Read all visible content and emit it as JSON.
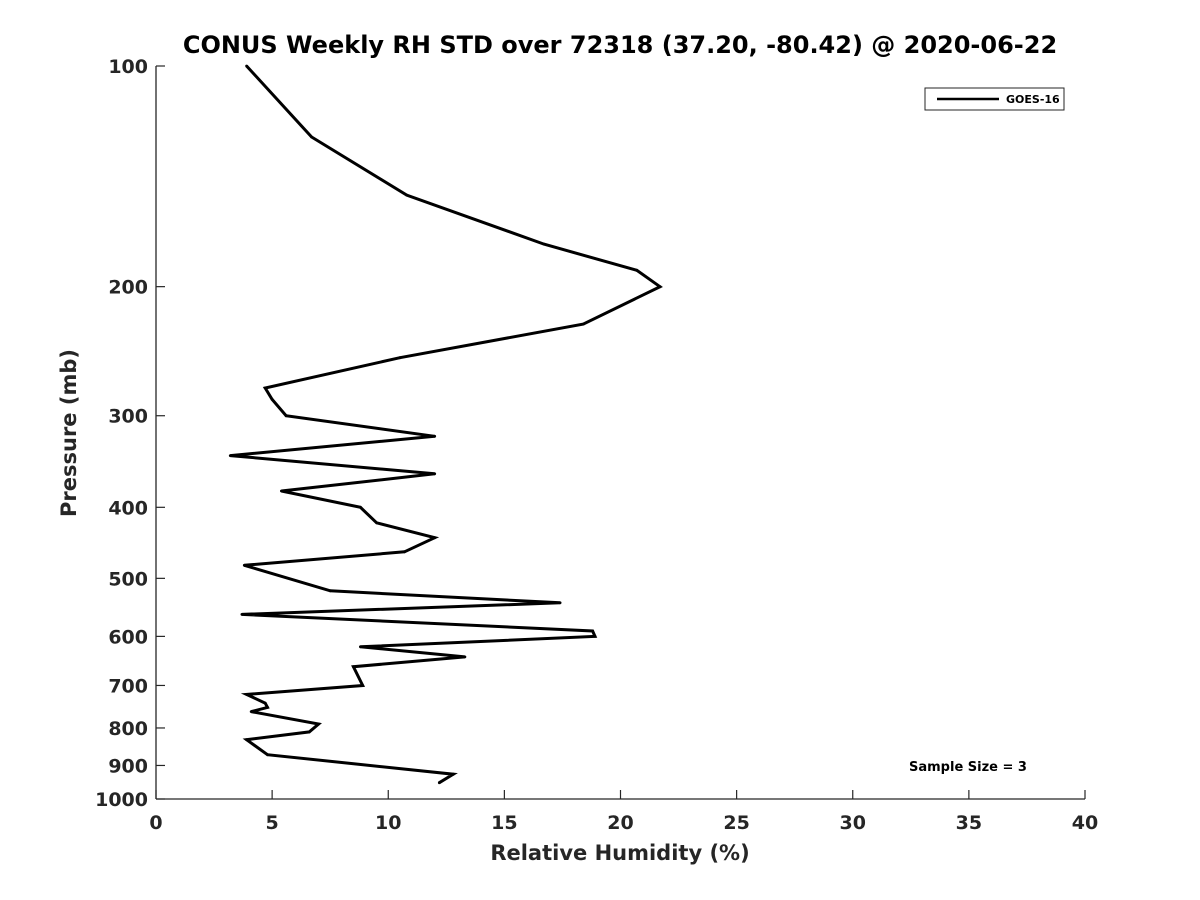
{
  "chart_data": {
    "type": "line",
    "title": "CONUS Weekly RH STD over 72318 (37.20, -80.42) @ 2020-06-22",
    "xlabel": "Relative Humidity (%)",
    "ylabel": "Pressure (mb)",
    "xlim": [
      0,
      40
    ],
    "ylim": [
      100,
      1000
    ],
    "y_scale": "log",
    "y_reversed": true,
    "x_ticks": [
      "0",
      "5",
      "10",
      "15",
      "20",
      "25",
      "30",
      "35",
      "40"
    ],
    "y_ticks": [
      "100",
      "200",
      "300",
      "400",
      "500",
      "600",
      "700",
      "800",
      "900",
      "1000"
    ],
    "grid": false,
    "legend_position": "top-right",
    "annotation": "Sample Size = 3",
    "series": [
      {
        "name": "GOES-16",
        "color": "#000000",
        "points": [
          {
            "x": 3.9,
            "y": 100
          },
          {
            "x": 6.7,
            "y": 125
          },
          {
            "x": 10.8,
            "y": 150
          },
          {
            "x": 16.7,
            "y": 175
          },
          {
            "x": 20.7,
            "y": 190
          },
          {
            "x": 21.7,
            "y": 200
          },
          {
            "x": 18.4,
            "y": 225
          },
          {
            "x": 10.5,
            "y": 250
          },
          {
            "x": 4.7,
            "y": 275
          },
          {
            "x": 5.0,
            "y": 285
          },
          {
            "x": 5.6,
            "y": 300
          },
          {
            "x": 12.0,
            "y": 320
          },
          {
            "x": 3.2,
            "y": 340
          },
          {
            "x": 12.0,
            "y": 360
          },
          {
            "x": 5.4,
            "y": 380
          },
          {
            "x": 8.8,
            "y": 400
          },
          {
            "x": 9.5,
            "y": 420
          },
          {
            "x": 12.0,
            "y": 440
          },
          {
            "x": 10.7,
            "y": 460
          },
          {
            "x": 3.8,
            "y": 480
          },
          {
            "x": 7.5,
            "y": 520
          },
          {
            "x": 17.4,
            "y": 540
          },
          {
            "x": 3.7,
            "y": 560
          },
          {
            "x": 18.8,
            "y": 590
          },
          {
            "x": 18.9,
            "y": 600
          },
          {
            "x": 8.8,
            "y": 620
          },
          {
            "x": 13.3,
            "y": 640
          },
          {
            "x": 8.5,
            "y": 660
          },
          {
            "x": 8.9,
            "y": 700
          },
          {
            "x": 3.9,
            "y": 720
          },
          {
            "x": 4.7,
            "y": 740
          },
          {
            "x": 4.8,
            "y": 750
          },
          {
            "x": 4.1,
            "y": 760
          },
          {
            "x": 7.0,
            "y": 790
          },
          {
            "x": 6.6,
            "y": 810
          },
          {
            "x": 3.9,
            "y": 830
          },
          {
            "x": 4.8,
            "y": 870
          },
          {
            "x": 12.8,
            "y": 925
          },
          {
            "x": 12.2,
            "y": 950
          }
        ]
      }
    ]
  }
}
